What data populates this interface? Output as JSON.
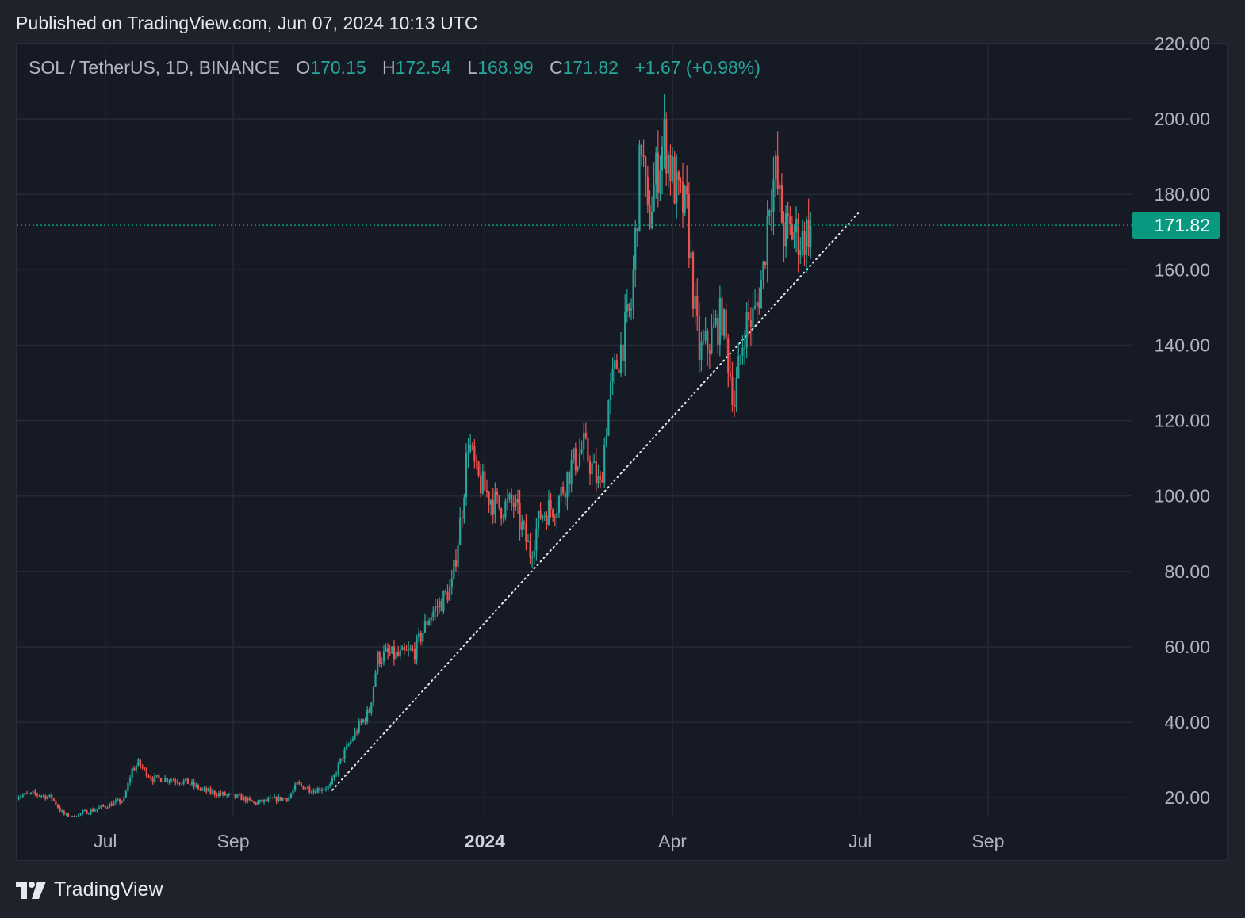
{
  "header": {
    "published": "Published on TradingView.com, Jun 07, 2024 10:13 UTC"
  },
  "legend": {
    "symbol": "SOL / TetherUS, 1D, BINANCE",
    "open_key": "O",
    "open": "170.15",
    "high_key": "H",
    "high": "172.54",
    "low_key": "L",
    "low": "168.99",
    "close_key": "C",
    "close": "171.82",
    "change": "+1.67 (+0.98%)"
  },
  "brand": {
    "name": "TradingView"
  },
  "colors": {
    "up": "#26a69a",
    "down": "#ef5350",
    "background": "#161a25",
    "grid": "#262a35",
    "last_price": "#089981"
  },
  "chart_data": {
    "type": "candlestick",
    "symbol": "SOL / TetherUS",
    "interval": "1D",
    "exchange": "BINANCE",
    "last_price": 171.82,
    "last_price_label": "171.82",
    "ylim": [
      15,
      220
    ],
    "y_ticks": [
      "220.00",
      "200.00",
      "180.00",
      "160.00",
      "140.00",
      "120.00",
      "100.00",
      "80.00",
      "60.00",
      "40.00",
      "20.00"
    ],
    "y_tick_values": [
      220,
      200,
      180,
      160,
      140,
      120,
      100,
      80,
      60,
      40,
      20
    ],
    "xlim": [
      "2023-05-19",
      "2024-11-10"
    ],
    "x_ticks": [
      {
        "date": "2023-07-01",
        "label": "Jul",
        "bold": false
      },
      {
        "date": "2023-09-01",
        "label": "Sep",
        "bold": false
      },
      {
        "date": "2024-01-01",
        "label": "2024",
        "bold": true
      },
      {
        "date": "2024-04-01",
        "label": "Apr",
        "bold": false
      },
      {
        "date": "2024-07-01",
        "label": "Jul",
        "bold": false
      },
      {
        "date": "2024-09-01",
        "label": "Sep",
        "bold": false
      }
    ],
    "trendline": {
      "style": "dotted",
      "from": {
        "date": "2023-10-19",
        "price": 22
      },
      "to": {
        "date": "2024-06-30",
        "price": 175
      }
    },
    "close_path": [
      [
        "2023-05-19",
        20.5
      ],
      [
        "2023-05-28",
        21.0
      ],
      [
        "2023-06-05",
        20.0
      ],
      [
        "2023-06-10",
        16.0
      ],
      [
        "2023-06-14",
        14.5
      ],
      [
        "2023-06-20",
        16.0
      ],
      [
        "2023-06-27",
        17.0
      ],
      [
        "2023-07-05",
        18.5
      ],
      [
        "2023-07-10",
        19.5
      ],
      [
        "2023-07-14",
        27.5
      ],
      [
        "2023-07-17",
        29.0
      ],
      [
        "2023-07-24",
        25.0
      ],
      [
        "2023-08-01",
        25.0
      ],
      [
        "2023-08-10",
        24.0
      ],
      [
        "2023-08-17",
        22.0
      ],
      [
        "2023-08-25",
        21.0
      ],
      [
        "2023-09-05",
        20.0
      ],
      [
        "2023-09-11",
        18.5
      ],
      [
        "2023-09-20",
        19.5
      ],
      [
        "2023-09-28",
        20.0
      ],
      [
        "2023-10-02",
        23.5
      ],
      [
        "2023-10-10",
        22.0
      ],
      [
        "2023-10-18",
        23.0
      ],
      [
        "2023-10-24",
        31.0
      ],
      [
        "2023-10-31",
        38.0
      ],
      [
        "2023-11-06",
        43.0
      ],
      [
        "2023-11-10",
        57.0
      ],
      [
        "2023-11-15",
        58.0
      ],
      [
        "2023-11-20",
        57.5
      ],
      [
        "2023-11-28",
        59.0
      ],
      [
        "2023-12-05",
        68.0
      ],
      [
        "2023-12-11",
        72.0
      ],
      [
        "2023-12-16",
        76.0
      ],
      [
        "2023-12-21",
        97.0
      ],
      [
        "2023-12-24",
        115.0
      ],
      [
        "2023-12-28",
        105.0
      ],
      [
        "2024-01-03",
        100.0
      ],
      [
        "2024-01-08",
        97.0
      ],
      [
        "2024-01-15",
        98.0
      ],
      [
        "2024-01-23",
        85.0
      ],
      [
        "2024-01-28",
        95.0
      ],
      [
        "2024-02-05",
        98.0
      ],
      [
        "2024-02-12",
        108.0
      ],
      [
        "2024-02-18",
        113.0
      ],
      [
        "2024-02-26",
        102.0
      ],
      [
        "2024-03-01",
        125.0
      ],
      [
        "2024-03-05",
        135.0
      ],
      [
        "2024-03-12",
        150.0
      ],
      [
        "2024-03-17",
        195.0
      ],
      [
        "2024-03-20",
        172.0
      ],
      [
        "2024-03-24",
        185.0
      ],
      [
        "2024-03-28",
        195.0
      ],
      [
        "2024-04-03",
        180.0
      ],
      [
        "2024-04-08",
        175.0
      ],
      [
        "2024-04-12",
        148.0
      ],
      [
        "2024-04-14",
        138.0
      ],
      [
        "2024-04-18",
        140.0
      ],
      [
        "2024-04-25",
        148.0
      ],
      [
        "2024-05-01",
        125.0
      ],
      [
        "2024-05-06",
        145.0
      ],
      [
        "2024-05-11",
        148.0
      ],
      [
        "2024-05-15",
        160.0
      ],
      [
        "2024-05-18",
        180.0
      ],
      [
        "2024-05-21",
        185.0
      ],
      [
        "2024-05-25",
        170.0
      ],
      [
        "2024-05-30",
        170.0
      ],
      [
        "2024-06-03",
        168.0
      ],
      [
        "2024-06-07",
        171.82
      ]
    ]
  }
}
